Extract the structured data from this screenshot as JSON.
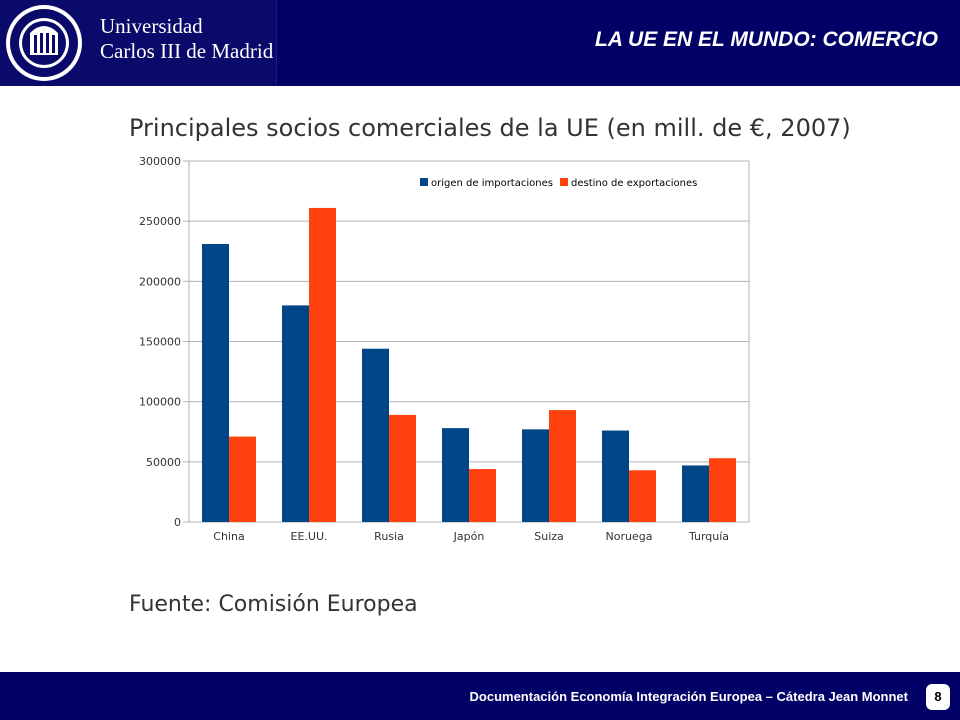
{
  "header": {
    "university_line1": "Universidad",
    "university_line2": "Carlos III de Madrid",
    "slide_title": "LA UE EN EL MUNDO: COMERCIO"
  },
  "chart_title": "Principales socios comerciales de la UE (en mill. de €, 2007)",
  "source": "Fuente: Comisión Europea",
  "footer": {
    "text": "Documentación Economía Integración Europea – Cátedra Jean Monnet",
    "page": "8"
  },
  "colors": {
    "header_bg": "#000066",
    "imports": "#004586",
    "exports": "#ff420e"
  },
  "chart_data": {
    "type": "bar",
    "title": "Principales socios comerciales de la UE (en mill. de €, 2007)",
    "xlabel": "",
    "ylabel": "",
    "categories": [
      "China",
      "EE.UU.",
      "Rusia",
      "Japón",
      "Suiza",
      "Noruega",
      "Turquía"
    ],
    "series": [
      {
        "name": "origen de importaciones",
        "color": "#004586",
        "values": [
          231000,
          180000,
          144000,
          78000,
          77000,
          76000,
          47000
        ]
      },
      {
        "name": "destino de exportaciones",
        "color": "#ff420e",
        "values": [
          71000,
          261000,
          89000,
          44000,
          93000,
          43000,
          53000
        ]
      }
    ],
    "ylim": [
      0,
      300000
    ],
    "yticks": [
      0,
      50000,
      100000,
      150000,
      200000,
      250000,
      300000
    ],
    "grid": true,
    "legend_position": "top-right"
  }
}
